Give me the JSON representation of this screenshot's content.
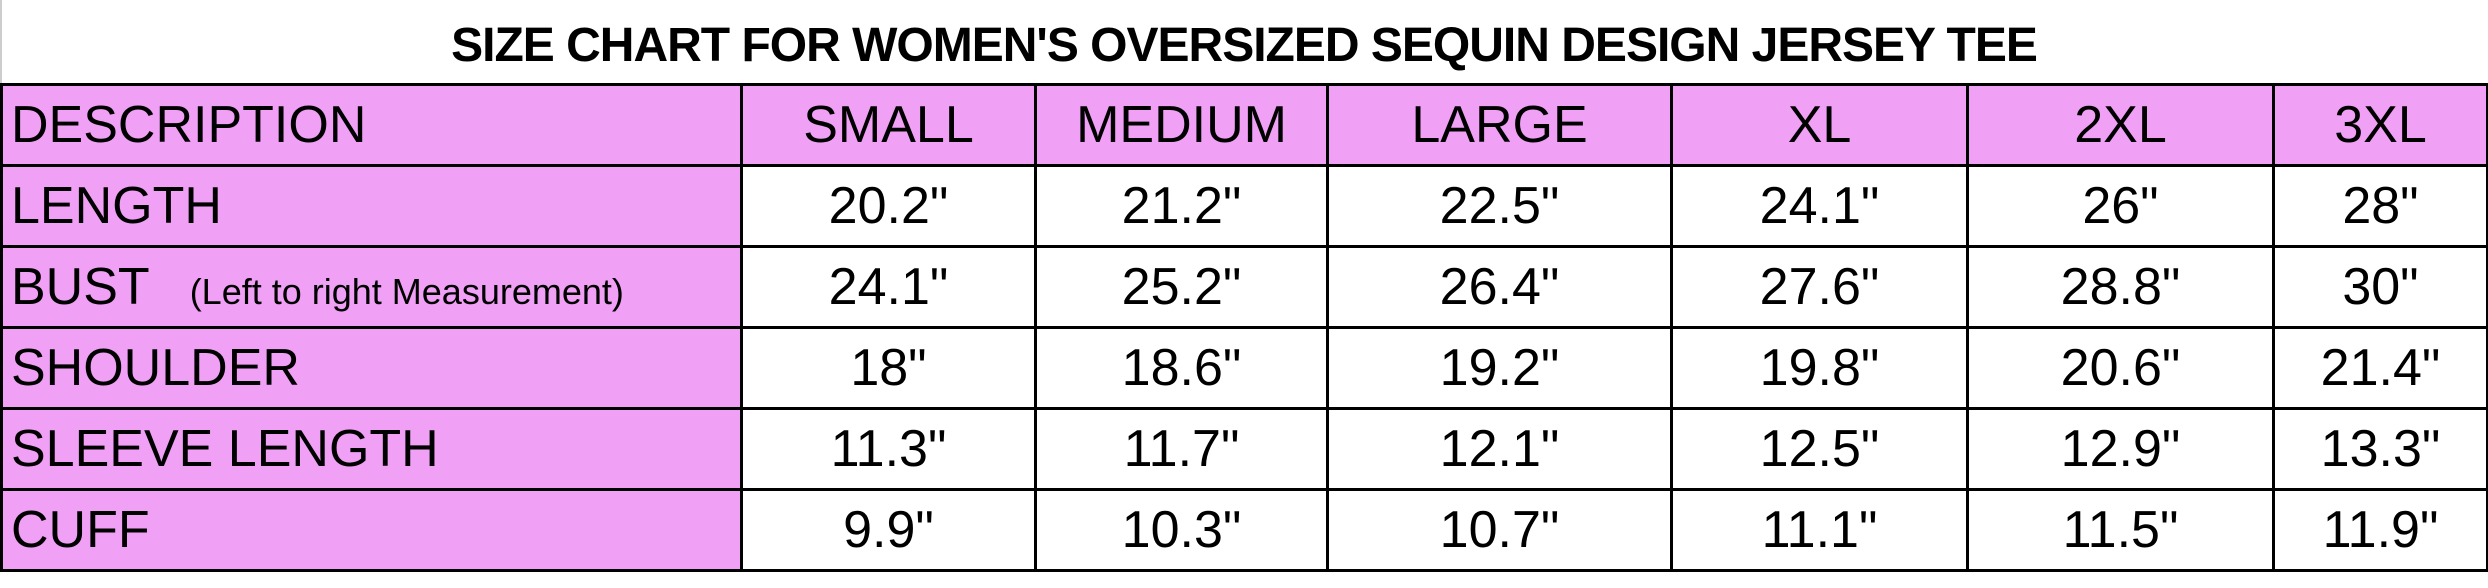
{
  "title": "SIZE CHART FOR WOMEN'S OVERSIZED SEQUIN DESIGN JERSEY TEE",
  "colors": {
    "header_fill": "#F0A0F5",
    "border": "#000000"
  },
  "columns": [
    "DESCRIPTION",
    "SMALL",
    "MEDIUM",
    "LARGE",
    "XL",
    "2XL",
    "3XL"
  ],
  "rows": [
    {
      "label": "LENGTH",
      "note": "",
      "values": [
        "20.2\"",
        "21.2\"",
        "22.5\"",
        "24.1\"",
        "26\"",
        "28\""
      ]
    },
    {
      "label": "BUST",
      "note": "(Left to right Measurement)",
      "values": [
        "24.1\"",
        "25.2\"",
        "26.4\"",
        "27.6\"",
        "28.8\"",
        "30\""
      ]
    },
    {
      "label": "SHOULDER",
      "note": "",
      "values": [
        "18\"",
        "18.6\"",
        "19.2\"",
        "19.8\"",
        "20.6\"",
        "21.4\""
      ]
    },
    {
      "label": "SLEEVE LENGTH",
      "note": "",
      "values": [
        "11.3\"",
        "11.7\"",
        "12.1\"",
        "12.5\"",
        "12.9\"",
        "13.3\""
      ]
    },
    {
      "label": "CUFF",
      "note": "",
      "values": [
        "9.9\"",
        "10.3\"",
        "10.7\"",
        "11.1\"",
        "11.5\"",
        "11.9\""
      ]
    }
  ]
}
